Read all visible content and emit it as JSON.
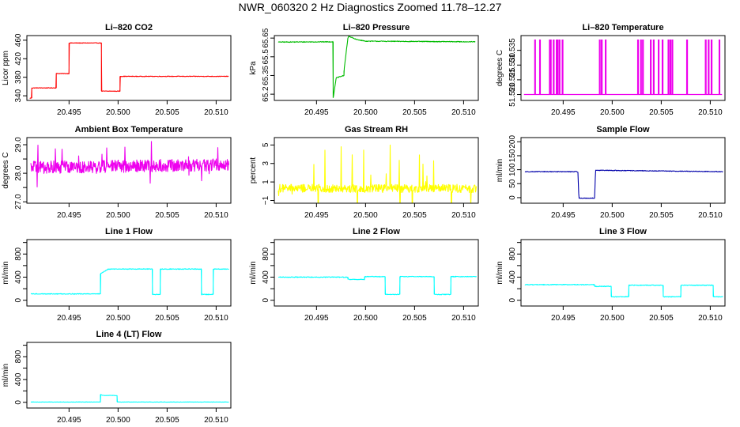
{
  "figure_title": "NWR_060320  2 Hz Diagnostics Zoomed 11.78–12.27",
  "chart_data": [
    {
      "type": "line",
      "title": "Li–820 CO2",
      "ylabel": "Licor ppm",
      "color": "#ff0000",
      "xlim": [
        20.4907,
        20.5115
      ],
      "xticks": [
        20.495,
        20.5,
        20.505,
        20.51
      ],
      "xtick_labels": [
        "20.495",
        "20.500",
        "20.505",
        "20.510"
      ],
      "ylim": [
        330,
        470
      ],
      "yticks": [
        340,
        380,
        420,
        460
      ],
      "ytick_labels": [
        "340",
        "380",
        "420",
        "460"
      ],
      "noise": 0.6,
      "spikes": 0,
      "series": [
        {
          "x": [
            20.491,
            20.491,
            20.4912,
            20.4912,
            20.492,
            20.492,
            20.4937,
            20.4937,
            20.495,
            20.495,
            20.4982,
            20.4982,
            20.4983,
            20.4983,
            20.499,
            20.499,
            20.5002,
            20.5002,
            20.5113
          ],
          "y": [
            335,
            335,
            335,
            357,
            357,
            357,
            357,
            388,
            388,
            454,
            454,
            454,
            454,
            350,
            350,
            350,
            350,
            382,
            382
          ]
        }
      ]
    },
    {
      "type": "line",
      "title": "Li–820 Pressure",
      "ylabel": "kPa",
      "color": "#00bb00",
      "xlim": [
        20.4907,
        20.5115
      ],
      "xticks": [
        20.495,
        20.5,
        20.505,
        20.51
      ],
      "xtick_labels": [
        "20.495",
        "20.500",
        "20.505",
        "20.510"
      ],
      "ylim": [
        65.15,
        65.67
      ],
      "yticks": [
        65.2,
        65.35,
        65.5,
        65.65
      ],
      "ytick_labels": [
        "65.2",
        "65.35",
        "65.5",
        "65.65"
      ],
      "noise": 0.003,
      "spikes": 0,
      "series": [
        {
          "x": [
            20.4911,
            20.4965,
            20.4967,
            20.4967,
            20.497,
            20.4978,
            20.4978,
            20.4982,
            20.4983,
            20.499,
            20.5,
            20.5112
          ],
          "y": [
            65.618,
            65.62,
            65.62,
            65.17,
            65.33,
            65.35,
            65.39,
            65.65,
            65.665,
            65.64,
            65.625,
            65.62
          ]
        }
      ]
    },
    {
      "type": "line",
      "title": "Li–820 Temperature",
      "ylabel": "degrees C",
      "color": "#ee00ee",
      "xlim": [
        20.4907,
        20.5115
      ],
      "xticks": [
        20.495,
        20.5,
        20.505,
        20.51
      ],
      "xtick_labels": [
        "20.495",
        "20.500",
        "20.505",
        "20.510"
      ],
      "ylim": [
        51.518,
        51.54
      ],
      "yticks": [
        51.52,
        51.525,
        51.53,
        51.535
      ],
      "ytick_labels": [
        "51.520",
        "51.525",
        "51.530",
        "51.535"
      ],
      "noise": 0,
      "spikes": 0,
      "pulse_base": 51.52,
      "pulse_high": 51.5385,
      "pulses": [
        20.4921,
        20.4926,
        20.4936,
        20.4937,
        20.494,
        20.4943,
        20.4944,
        20.4946,
        20.4949,
        20.4987,
        20.4989,
        20.4993,
        20.5026,
        20.5029,
        20.5031,
        20.5039,
        20.5042,
        20.5047,
        20.5051,
        20.5057,
        20.5059,
        20.5061,
        20.5076,
        20.5095,
        20.5098,
        20.5101,
        20.5109
      ]
    },
    {
      "type": "line",
      "title": "Ambient Box Temperature",
      "ylabel": "degrees C",
      "color": "#ee00ee",
      "xlim": [
        20.4907,
        20.5115
      ],
      "xticks": [
        20.495,
        20.5,
        20.505,
        20.51
      ],
      "xtick_labels": [
        "20.495",
        "20.500",
        "20.505",
        "20.510"
      ],
      "ylim": [
        26.95,
        29.25
      ],
      "yticks": [
        27.0,
        27.5,
        28.0,
        28.5,
        29.0
      ],
      "ytick_labels": [
        "27.0",
        "",
        "28.0",
        "",
        "29.0"
      ],
      "noise": 0.22,
      "spikes": 0.9,
      "series": [
        {
          "x": [
            20.4911,
            20.5113
          ],
          "y": [
            28.2,
            28.3
          ]
        }
      ]
    },
    {
      "type": "line",
      "title": "Gas Stream RH",
      "ylabel": "percent",
      "color": "#ffff00",
      "xlim": [
        20.4907,
        20.5115
      ],
      "xticks": [
        20.495,
        20.5,
        20.505,
        20.51
      ],
      "xtick_labels": [
        "20.495",
        "20.500",
        "20.505",
        "20.510"
      ],
      "ylim": [
        -1.3,
        5.8
      ],
      "yticks": [
        -1,
        1,
        3,
        5
      ],
      "ytick_labels": [
        "−1",
        "1",
        "3",
        "5"
      ],
      "noise": 0.45,
      "spikes": 4.5,
      "series": [
        {
          "x": [
            20.4911,
            20.5113
          ],
          "y": [
            0.3,
            0.3
          ]
        }
      ]
    },
    {
      "type": "line",
      "title": "Sample Flow",
      "ylabel": "ml/min",
      "color": "#0000aa",
      "xlim": [
        20.4907,
        20.5115
      ],
      "xticks": [
        20.495,
        20.5,
        20.505,
        20.51
      ],
      "xtick_labels": [
        "20.495",
        "20.500",
        "20.505",
        "20.510"
      ],
      "ylim": [
        -20,
        215
      ],
      "yticks": [
        0,
        50,
        100,
        150,
        200
      ],
      "ytick_labels": [
        "0",
        "50",
        "100",
        "150",
        "200"
      ],
      "noise": 1.2,
      "spikes": 0,
      "series": [
        {
          "x": [
            20.4911,
            20.4965,
            20.4966,
            20.4982,
            20.4983,
            20.5113
          ],
          "y": [
            93,
            93,
            -2,
            -2,
            98,
            93
          ]
        }
      ]
    },
    {
      "type": "line",
      "title": "Line 1 Flow",
      "ylabel": "ml/min",
      "color": "#00ffff",
      "xlim": [
        20.4907,
        20.5115
      ],
      "xticks": [
        20.495,
        20.5,
        20.505,
        20.51
      ],
      "xtick_labels": [
        "20.495",
        "20.500",
        "20.505",
        "20.510"
      ],
      "ylim": [
        -100,
        1050
      ],
      "yticks": [
        0,
        200,
        400,
        600,
        800,
        1000
      ],
      "ytick_labels": [
        "0",
        "",
        "400",
        "",
        "800",
        ""
      ],
      "noise": 6,
      "spikes": 0,
      "series": [
        {
          "x": [
            20.4911,
            20.4982,
            20.4982,
            20.499,
            20.5035,
            20.5035,
            20.5043,
            20.5043,
            20.5085,
            20.5085,
            20.5097,
            20.5097,
            20.5113
          ],
          "y": [
            110,
            110,
            460,
            540,
            540,
            100,
            100,
            540,
            540,
            100,
            100,
            540,
            540
          ]
        }
      ]
    },
    {
      "type": "line",
      "title": "Line 2 Flow",
      "ylabel": "ml/min",
      "color": "#00ffff",
      "xlim": [
        20.4907,
        20.5115
      ],
      "xticks": [
        20.495,
        20.5,
        20.505,
        20.51
      ],
      "xtick_labels": [
        "20.495",
        "20.500",
        "20.505",
        "20.510"
      ],
      "ylim": [
        -100,
        1050
      ],
      "yticks": [
        0,
        200,
        400,
        600,
        800,
        1000
      ],
      "ytick_labels": [
        "0",
        "",
        "400",
        "",
        "800",
        ""
      ],
      "noise": 6,
      "spikes": 0,
      "series": [
        {
          "x": [
            20.4911,
            20.4982,
            20.4982,
            20.4999,
            20.4999,
            20.502,
            20.502,
            20.5035,
            20.5035,
            20.507,
            20.507,
            20.5087,
            20.5087,
            20.5113
          ],
          "y": [
            400,
            400,
            360,
            360,
            410,
            410,
            100,
            100,
            410,
            410,
            100,
            100,
            410,
            410
          ]
        }
      ]
    },
    {
      "type": "line",
      "title": "Line 3 Flow",
      "ylabel": "ml/min",
      "color": "#00ffff",
      "xlim": [
        20.4907,
        20.5115
      ],
      "xticks": [
        20.495,
        20.5,
        20.505,
        20.51
      ],
      "xtick_labels": [
        "20.495",
        "20.500",
        "20.505",
        "20.510"
      ],
      "ylim": [
        -100,
        1050
      ],
      "yticks": [
        0,
        200,
        400,
        600,
        800,
        1000
      ],
      "ytick_labels": [
        "0",
        "",
        "400",
        "",
        "800",
        ""
      ],
      "noise": 6,
      "spikes": 0,
      "series": [
        {
          "x": [
            20.4911,
            20.4982,
            20.4982,
            20.4999,
            20.4999,
            20.5017,
            20.5017,
            20.5052,
            20.5052,
            20.507,
            20.507,
            20.5103,
            20.5103,
            20.5113
          ],
          "y": [
            270,
            270,
            240,
            240,
            60,
            60,
            260,
            260,
            60,
            60,
            260,
            260,
            60,
            60
          ]
        }
      ]
    },
    {
      "type": "line",
      "title": "Line 4 (LT) Flow",
      "ylabel": "ml/min",
      "color": "#00ffff",
      "xlim": [
        20.4907,
        20.5115
      ],
      "xticks": [
        20.495,
        20.5,
        20.505,
        20.51
      ],
      "xtick_labels": [
        "20.495",
        "20.500",
        "20.505",
        "20.510"
      ],
      "ylim": [
        -100,
        1050
      ],
      "yticks": [
        0,
        200,
        400,
        600,
        800,
        1000
      ],
      "ytick_labels": [
        "0",
        "",
        "400",
        "",
        "800",
        ""
      ],
      "noise": 3,
      "spikes": 0,
      "series": [
        {
          "x": [
            20.4911,
            20.4982,
            20.4982,
            20.4984,
            20.4999,
            20.4999,
            20.5113
          ],
          "y": [
            5,
            5,
            140,
            120,
            120,
            5,
            5
          ]
        }
      ]
    }
  ]
}
